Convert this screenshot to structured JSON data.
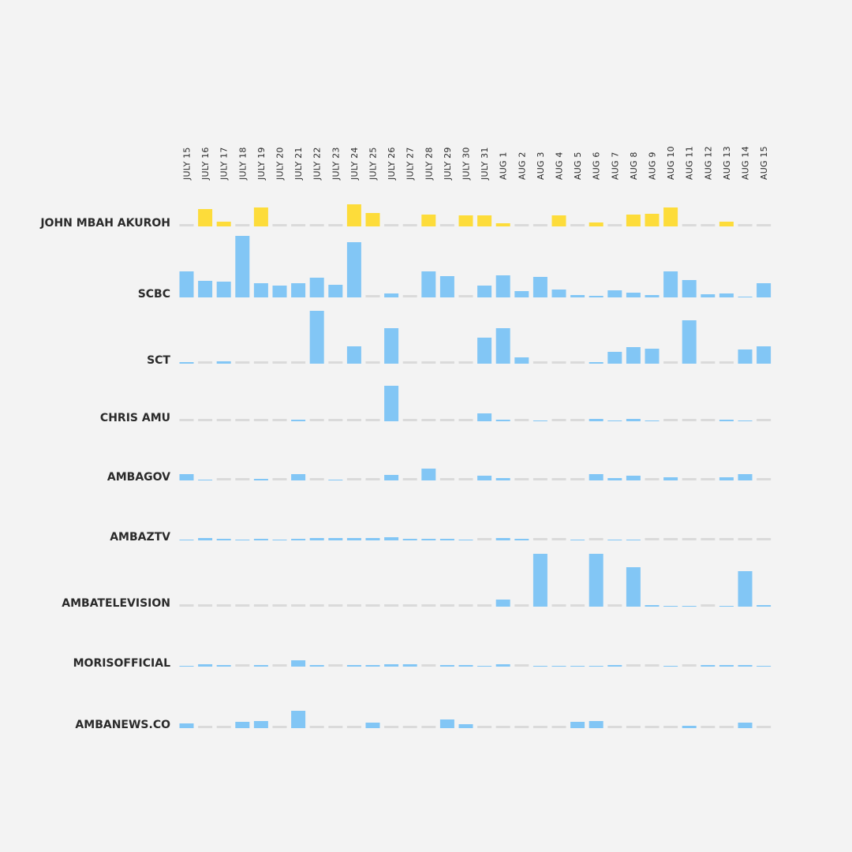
{
  "chart_data": {
    "type": "bar",
    "title": "",
    "xlabel": "",
    "ylabel": "",
    "categories": [
      "JULY 15",
      "JULY 16",
      "JULY 17",
      "JULY 18",
      "JULY 19",
      "JULY 20",
      "JULY 21",
      "JULY 22",
      "JULY 23",
      "JULY 24",
      "JULY 25",
      "JULY 26",
      "JULY 27",
      "JULY 28",
      "JULY 29",
      "JULY 30",
      "JULY 31",
      "AUG 1",
      "AUG 2",
      "AUG 3",
      "AUG 4",
      "AUG 5",
      "AUG 6",
      "AUG 7",
      "AUG 8",
      "AUG 9",
      "AUG 10",
      "AUG 11",
      "AUG 12",
      "AUG 13",
      "AUG 14",
      "AUG 15"
    ],
    "ylim": [
      0,
      80
    ],
    "empty_marker_color": "#dadada",
    "series": [
      {
        "name": "JOHN MBAH AKUROH",
        "color": "#fddc3a",
        "values": [
          0,
          22,
          6,
          0,
          24,
          0,
          0,
          0,
          0,
          28,
          17,
          0,
          0,
          15,
          0,
          14,
          14,
          4,
          0,
          0,
          14,
          0,
          5,
          0,
          15,
          16,
          24,
          0,
          0,
          6,
          0,
          0
        ]
      },
      {
        "name": "SCBC",
        "color": "#82c6f5",
        "values": [
          33,
          21,
          20,
          78,
          18,
          15,
          18,
          25,
          16,
          70,
          0,
          5,
          0,
          33,
          27,
          0,
          15,
          28,
          8,
          26,
          10,
          3,
          2,
          9,
          6,
          3,
          33,
          22,
          4,
          5,
          1,
          18
        ]
      },
      {
        "name": "SCT",
        "color": "#82c6f5",
        "values": [
          2,
          0,
          3,
          0,
          0,
          0,
          0,
          67,
          0,
          22,
          0,
          45,
          0,
          0,
          0,
          0,
          33,
          45,
          8,
          0,
          0,
          0,
          2,
          15,
          21,
          19,
          0,
          55,
          0,
          0,
          18,
          22
        ]
      },
      {
        "name": "CHRIS AMU",
        "color": "#82c6f5",
        "values": [
          0,
          0,
          0,
          0,
          0,
          0,
          2,
          0,
          0,
          0,
          0,
          45,
          0,
          0,
          0,
          0,
          10,
          2,
          0,
          1,
          0,
          0,
          3,
          1,
          3,
          1,
          0,
          0,
          0,
          2,
          1,
          0
        ]
      },
      {
        "name": "AMBAGOV",
        "color": "#82c6f5",
        "values": [
          8,
          1,
          0,
          0,
          2,
          0,
          8,
          0,
          1,
          0,
          0,
          7,
          0,
          15,
          0,
          0,
          6,
          3,
          0,
          0,
          0,
          0,
          8,
          3,
          6,
          0,
          4,
          0,
          0,
          4,
          8,
          0
        ]
      },
      {
        "name": "AMBAZTV",
        "color": "#82c6f5",
        "values": [
          1,
          3,
          2,
          1,
          2,
          1,
          2,
          3,
          3,
          3,
          3,
          4,
          2,
          2,
          2,
          1,
          0,
          3,
          2,
          0,
          0,
          1,
          0,
          1,
          1,
          0,
          0,
          0,
          0,
          0,
          0,
          0
        ]
      },
      {
        "name": "AMBATELEVISION",
        "color": "#82c6f5",
        "values": [
          0,
          0,
          0,
          0,
          0,
          0,
          0,
          0,
          0,
          0,
          0,
          0,
          0,
          0,
          0,
          0,
          0,
          9,
          0,
          67,
          0,
          0,
          67,
          0,
          50,
          2,
          1,
          1,
          0,
          1,
          45,
          2
        ]
      },
      {
        "name": "MORISOFFICIAL",
        "color": "#82c6f5",
        "values": [
          1,
          3,
          2,
          0,
          2,
          0,
          8,
          2,
          0,
          2,
          2,
          3,
          3,
          0,
          2,
          2,
          1,
          3,
          0,
          1,
          1,
          1,
          1,
          2,
          0,
          0,
          1,
          0,
          2,
          2,
          2,
          1
        ]
      },
      {
        "name": "AMBANEWS.CO",
        "color": "#82c6f5",
        "values": [
          6,
          0,
          0,
          8,
          9,
          0,
          22,
          0,
          0,
          0,
          7,
          0,
          0,
          0,
          11,
          5,
          0,
          0,
          0,
          0,
          0,
          8,
          9,
          0,
          0,
          0,
          0,
          3,
          0,
          0,
          7,
          0
        ]
      }
    ]
  }
}
